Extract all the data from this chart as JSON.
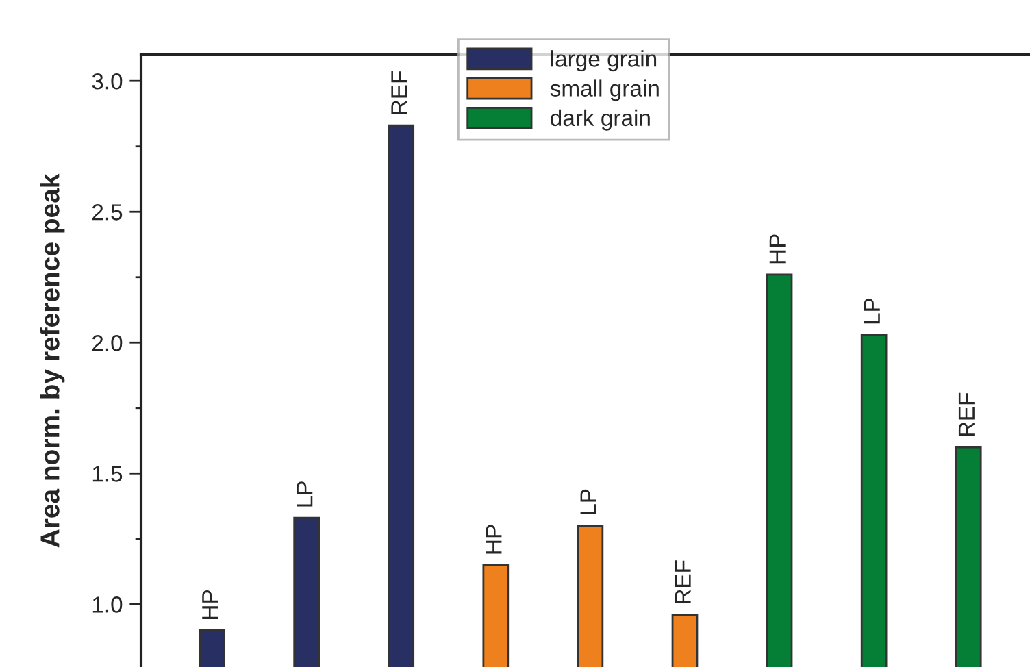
{
  "chart_data": {
    "type": "bar",
    "ylabel": "Area norm. by reference peak",
    "categories": [
      "HP",
      "LP",
      "REF",
      "HP",
      "LP",
      "REF",
      "HP",
      "LP",
      "REF"
    ],
    "series": [
      {
        "name": "large grain",
        "color": "#272f63",
        "values": [
          0.9,
          1.33,
          2.83,
          null,
          null,
          null,
          null,
          null,
          null
        ]
      },
      {
        "name": "small grain",
        "color": "#ee801e",
        "values": [
          null,
          null,
          null,
          1.15,
          1.3,
          0.96,
          null,
          null,
          null
        ]
      },
      {
        "name": "dark grain",
        "color": "#067f36",
        "values": [
          null,
          null,
          null,
          null,
          null,
          null,
          2.26,
          2.03,
          1.6
        ]
      }
    ],
    "ylim": [
      0.76,
      3.1
    ],
    "yticks": [
      {
        "value": 1,
        "label": "1.0"
      },
      {
        "value": 1.25,
        "label": null
      },
      1.5,
      {
        "value": 1.75,
        "label": null
      },
      {
        "value": 2,
        "label": "2.0"
      },
      {
        "value": 2.25,
        "label": null
      },
      2.5,
      {
        "value": 2.75,
        "label": null
      },
      {
        "value": 3,
        "label": "3.0"
      }
    ],
    "tick_labels": "y",
    "legend": "top",
    "grid": false
  }
}
